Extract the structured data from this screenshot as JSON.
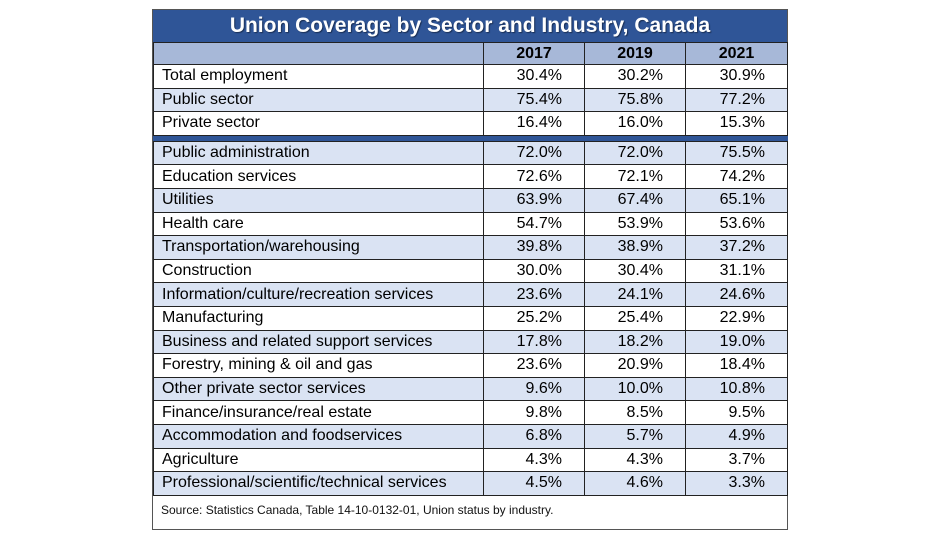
{
  "chart_data": {
    "type": "table",
    "title": "Union Coverage by Sector and Industry, Canada",
    "columns": [
      "",
      "2017",
      "2019",
      "2021"
    ],
    "sector_rows": [
      {
        "label": "Total employment",
        "values": [
          "30.4%",
          "30.2%",
          "30.9%"
        ]
      },
      {
        "label": "Public sector",
        "values": [
          "75.4%",
          "75.8%",
          "77.2%"
        ]
      },
      {
        "label": "Private sector",
        "values": [
          "16.4%",
          "16.0%",
          "15.3%"
        ]
      }
    ],
    "industry_rows": [
      {
        "label": "Public administration",
        "values": [
          "72.0%",
          "72.0%",
          "75.5%"
        ]
      },
      {
        "label": "Education services",
        "values": [
          "72.6%",
          "72.1%",
          "74.2%"
        ]
      },
      {
        "label": "Utilities",
        "values": [
          "63.9%",
          "67.4%",
          "65.1%"
        ]
      },
      {
        "label": "Health care",
        "values": [
          "54.7%",
          "53.9%",
          "53.6%"
        ]
      },
      {
        "label": "Transportation/warehousing",
        "values": [
          "39.8%",
          "38.9%",
          "37.2%"
        ]
      },
      {
        "label": "Construction",
        "values": [
          "30.0%",
          "30.4%",
          "31.1%"
        ]
      },
      {
        "label": "Information/culture/recreation services",
        "values": [
          "23.6%",
          "24.1%",
          "24.6%"
        ]
      },
      {
        "label": "Manufacturing",
        "values": [
          "25.2%",
          "25.4%",
          "22.9%"
        ]
      },
      {
        "label": "Business and related support services",
        "values": [
          "17.8%",
          "18.2%",
          "19.0%"
        ]
      },
      {
        "label": "Forestry, mining & oil and gas",
        "values": [
          "23.6%",
          "20.9%",
          "18.4%"
        ]
      },
      {
        "label": "Other private sector services",
        "values": [
          "9.6%",
          "10.0%",
          "10.8%"
        ]
      },
      {
        "label": "Finance/insurance/real estate",
        "values": [
          "9.8%",
          "8.5%",
          "9.5%"
        ]
      },
      {
        "label": "Accommodation and foodservices",
        "values": [
          "6.8%",
          "5.7%",
          "4.9%"
        ]
      },
      {
        "label": "Agriculture",
        "values": [
          "4.3%",
          "4.3%",
          "3.7%"
        ]
      },
      {
        "label": "Professional/scientific/technical services",
        "values": [
          "4.5%",
          "4.6%",
          "3.3%"
        ]
      }
    ],
    "source": "Source:  Statistics Canada, Table 14-10-0132-01, Union status by industry."
  },
  "colors": {
    "header": "#2f5597",
    "subheader": "#a7b8d8",
    "band": "#dae3f3"
  }
}
